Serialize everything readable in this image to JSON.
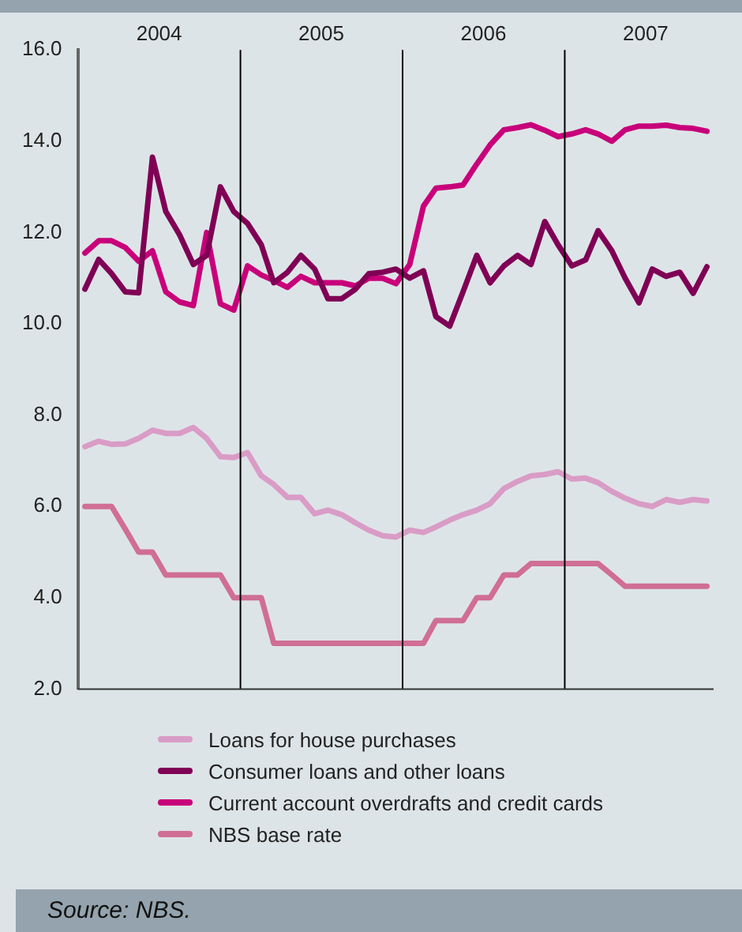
{
  "chart_data": {
    "type": "line",
    "x": [
      "2004-01",
      "2004-02",
      "2004-03",
      "2004-04",
      "2004-05",
      "2004-06",
      "2004-07",
      "2004-08",
      "2004-09",
      "2004-10",
      "2004-11",
      "2004-12",
      "2005-01",
      "2005-02",
      "2005-03",
      "2005-04",
      "2005-05",
      "2005-06",
      "2005-07",
      "2005-08",
      "2005-09",
      "2005-10",
      "2005-11",
      "2005-12",
      "2006-01",
      "2006-02",
      "2006-03",
      "2006-04",
      "2006-05",
      "2006-06",
      "2006-07",
      "2006-08",
      "2006-09",
      "2006-10",
      "2006-11",
      "2006-12",
      "2007-01",
      "2007-02",
      "2007-03",
      "2007-04",
      "2007-05",
      "2007-06",
      "2007-07",
      "2007-08",
      "2007-09",
      "2007-10",
      "2007-11"
    ],
    "series": [
      {
        "name": "Loans for house purchases",
        "color": "#d99cc6",
        "values": [
          7.31,
          7.43,
          7.36,
          7.37,
          7.49,
          7.67,
          7.6,
          7.6,
          7.73,
          7.49,
          7.09,
          7.07,
          7.18,
          6.67,
          6.48,
          6.2,
          6.2,
          5.84,
          5.92,
          5.82,
          5.64,
          5.48,
          5.36,
          5.33,
          5.48,
          5.43,
          5.55,
          5.7,
          5.82,
          5.92,
          6.06,
          6.39,
          6.55,
          6.67,
          6.7,
          6.76,
          6.6,
          6.62,
          6.52,
          6.33,
          6.18,
          6.06,
          6.0,
          6.15,
          6.09,
          6.15,
          6.12
        ]
      },
      {
        "name": "Consumer loans and other loans",
        "color": "#7f0055",
        "values": [
          10.76,
          11.41,
          11.1,
          10.7,
          10.68,
          13.65,
          12.46,
          11.95,
          11.3,
          11.5,
          13.0,
          12.46,
          12.2,
          11.73,
          10.9,
          11.13,
          11.5,
          11.2,
          10.55,
          10.55,
          10.76,
          11.1,
          11.13,
          11.2,
          11.0,
          11.16,
          10.16,
          9.95,
          10.7,
          11.5,
          10.9,
          11.27,
          11.5,
          11.3,
          12.24,
          11.73,
          11.27,
          11.4,
          12.04,
          11.6,
          11.0,
          10.46,
          11.2,
          11.04,
          11.13,
          10.67,
          11.25
        ]
      },
      {
        "name": "Current account overdrafts and credit cards",
        "color": "#c8007a",
        "values": [
          11.55,
          11.82,
          11.82,
          11.67,
          11.37,
          11.6,
          10.7,
          10.48,
          10.4,
          12.0,
          10.44,
          10.3,
          11.27,
          11.07,
          10.95,
          10.8,
          11.04,
          10.9,
          10.9,
          10.9,
          10.83,
          11.0,
          11.0,
          10.88,
          11.3,
          12.58,
          12.97,
          13.0,
          13.04,
          13.5,
          13.92,
          14.25,
          14.3,
          14.36,
          14.24,
          14.1,
          14.16,
          14.25,
          14.16,
          14.0,
          14.25,
          14.33,
          14.33,
          14.35,
          14.3,
          14.28,
          14.22
        ]
      },
      {
        "name": "NBS base rate",
        "color": "#d06e94",
        "values": [
          6.0,
          6.0,
          6.0,
          5.5,
          5.0,
          5.0,
          4.5,
          4.5,
          4.5,
          4.5,
          4.5,
          4.0,
          4.0,
          4.0,
          3.0,
          3.0,
          3.0,
          3.0,
          3.0,
          3.0,
          3.0,
          3.0,
          3.0,
          3.0,
          3.0,
          3.0,
          3.5,
          3.5,
          3.5,
          4.0,
          4.0,
          4.5,
          4.5,
          4.75,
          4.75,
          4.75,
          4.75,
          4.75,
          4.75,
          4.5,
          4.25,
          4.25,
          4.25,
          4.25,
          4.25,
          4.25,
          4.25
        ]
      }
    ],
    "xlim": [
      "2003-12-16",
      "2007-11-16"
    ],
    "xticks": [
      {
        "value": "2004-06-16",
        "label": "2004"
      },
      {
        "value": "2005-06-16",
        "label": "2005"
      },
      {
        "value": "2006-06-16",
        "label": "2006"
      },
      {
        "value": "2007-06-16",
        "label": "2007"
      }
    ],
    "ylim": [
      2,
      16
    ],
    "yticks": [
      {
        "value": 2,
        "label": "2.0"
      },
      {
        "value": 4,
        "label": "4.0"
      },
      {
        "value": 6,
        "label": "6.0"
      },
      {
        "value": 8,
        "label": "8.0"
      },
      {
        "value": 10,
        "label": "10.0"
      },
      {
        "value": 12,
        "label": "12.0"
      },
      {
        "value": 14,
        "label": "14.0"
      },
      {
        "value": 16,
        "label": "16.0"
      }
    ],
    "ref_lines": [
      {
        "axis": "x",
        "value": "2004-12-16",
        "color": "#000000"
      },
      {
        "axis": "x",
        "value": "2005-12-16",
        "color": "#000000"
      },
      {
        "axis": "x",
        "value": "2006-12-16",
        "color": "#000000"
      }
    ],
    "grid": false,
    "legend": "bottom",
    "marker": "none",
    "line_style": "solid",
    "annotations": [
      "Source: NBS."
    ]
  }
}
